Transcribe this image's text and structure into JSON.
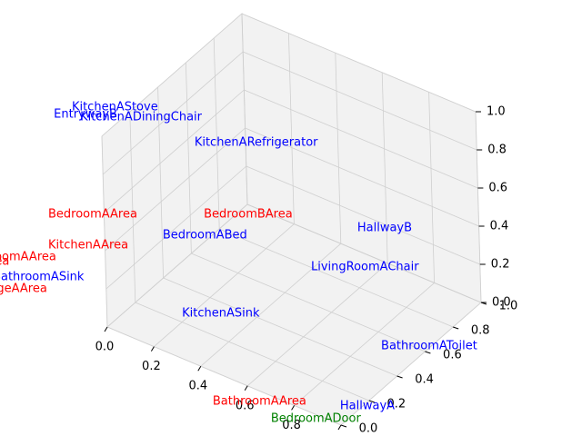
{
  "chart_data": {
    "type": "scatter3d",
    "points": [
      {
        "name": "KitchenAStove",
        "color": "#0000ff",
        "x": -0.829,
        "y": 1.13,
        "z": 0
      },
      {
        "name": "EntrywayB",
        "color": "#0000ff",
        "x": -0.857,
        "y": 1.048,
        "z": 0
      },
      {
        "name": "KitchenADiningChair",
        "color": "#0000ff",
        "x": -0.772,
        "y": 1.094,
        "z": 0
      },
      {
        "name": "KitchenARefrigerator",
        "color": "#0000ff",
        "x": -0.357,
        "y": 1.218,
        "z": 0
      },
      {
        "name": "BedroomAArea",
        "color": "#ff0000",
        "x": -0.543,
        "y": 0.484,
        "z": 0
      },
      {
        "name": "BedroomBArea",
        "color": "#ff0000",
        "x": -0.093,
        "y": 0.844,
        "z": 0
      },
      {
        "name": "HallwayB",
        "color": "#0000ff",
        "x": 0.396,
        "y": 1.124,
        "z": 0
      },
      {
        "name": "BedroomABed",
        "color": "#0000ff",
        "x": -0.143,
        "y": 0.634,
        "z": 0
      },
      {
        "name": "KitchenAArea",
        "color": "#ff0000",
        "x": -0.441,
        "y": 0.314,
        "z": 0
      },
      {
        "name": "LivingRoomAChair",
        "color": "#0000ff",
        "x": 0.391,
        "y": 0.802,
        "z": 0
      },
      {
        "name": "LivingRoomAArea",
        "color": "#ff0000",
        "x": -0.681,
        "y": 0.026,
        "z": 0
      },
      {
        "name": "HallwayAArea",
        "color": "#ff0000",
        "x": -0.737,
        "y": -0.056,
        "z": 0
      },
      {
        "name": "BathroomASink",
        "color": "#0000ff",
        "x": -0.496,
        "y": 0.01,
        "z": 0
      },
      {
        "name": "GarageAArea",
        "color": "#ff0000",
        "x": -0.528,
        "y": -0.112,
        "z": 0
      },
      {
        "name": "KitchenASink",
        "color": "#0000ff",
        "x": 0.171,
        "y": 0.248,
        "z": 0
      },
      {
        "name": "BathroomAToilet",
        "color": "#0000ff",
        "x": 0.855,
        "y": 0.528,
        "z": 0
      },
      {
        "name": "BathroomAArea",
        "color": "#ff0000",
        "x": 0.551,
        "y": -0.167,
        "z": 0
      },
      {
        "name": "HallwayA",
        "color": "#0000ff",
        "x": 0.934,
        "y": 0.103,
        "z": 0
      },
      {
        "name": "BedroomADoor",
        "color": "#008000",
        "x": 0.776,
        "y": -0.127,
        "z": 0
      }
    ],
    "xlim": [
      0,
      1
    ],
    "ylim": [
      0,
      1
    ],
    "zlim": [
      0,
      1
    ],
    "xticks": [
      {
        "value": 0,
        "label": "0.0"
      },
      {
        "value": 0.2,
        "label": "0.2"
      },
      {
        "value": 0.4,
        "label": "0.4"
      },
      {
        "value": 0.6,
        "label": "0.6"
      },
      {
        "value": 0.8,
        "label": "0.8"
      },
      {
        "value": 1,
        "label": "1.0"
      }
    ],
    "yticks": [
      {
        "value": 0,
        "label": "0.0"
      },
      {
        "value": 0.2,
        "label": "0.2"
      },
      {
        "value": 0.4,
        "label": "0.4"
      },
      {
        "value": 0.6,
        "label": "0.6"
      },
      {
        "value": 0.8,
        "label": "0.8"
      },
      {
        "value": 1,
        "label": "1.0"
      }
    ],
    "zticks": [
      {
        "value": 0,
        "label": "0.0"
      },
      {
        "value": 0.2,
        "label": "0.2"
      },
      {
        "value": 0.4,
        "label": "0.4"
      },
      {
        "value": 0.6,
        "label": "0.6"
      },
      {
        "value": 0.8,
        "label": "0.8"
      },
      {
        "value": 1,
        "label": "1.0"
      }
    ],
    "grid": true
  }
}
